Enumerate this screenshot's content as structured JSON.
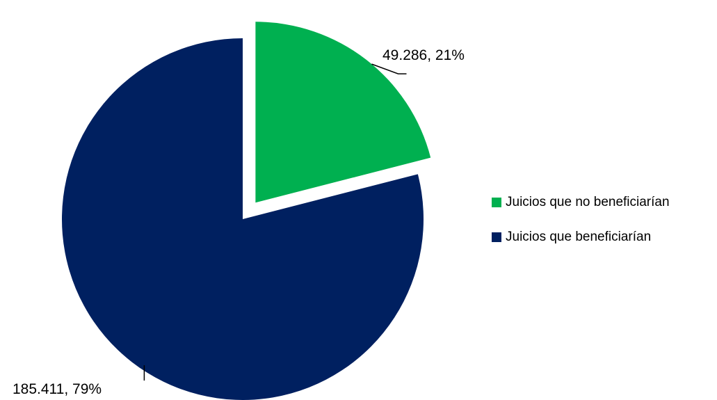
{
  "chart_data": {
    "type": "pie",
    "categories": [
      "Juicios que no beneficiarían",
      "Juicios que beneficiarían"
    ],
    "values": [
      49286,
      185411
    ],
    "percentages": [
      21,
      79
    ],
    "data_labels": [
      "49.286, 21%",
      "185.411, 79%"
    ],
    "colors": [
      "#00B050",
      "#002060"
    ],
    "exploded": [
      true,
      false
    ],
    "legend_position": "right"
  }
}
